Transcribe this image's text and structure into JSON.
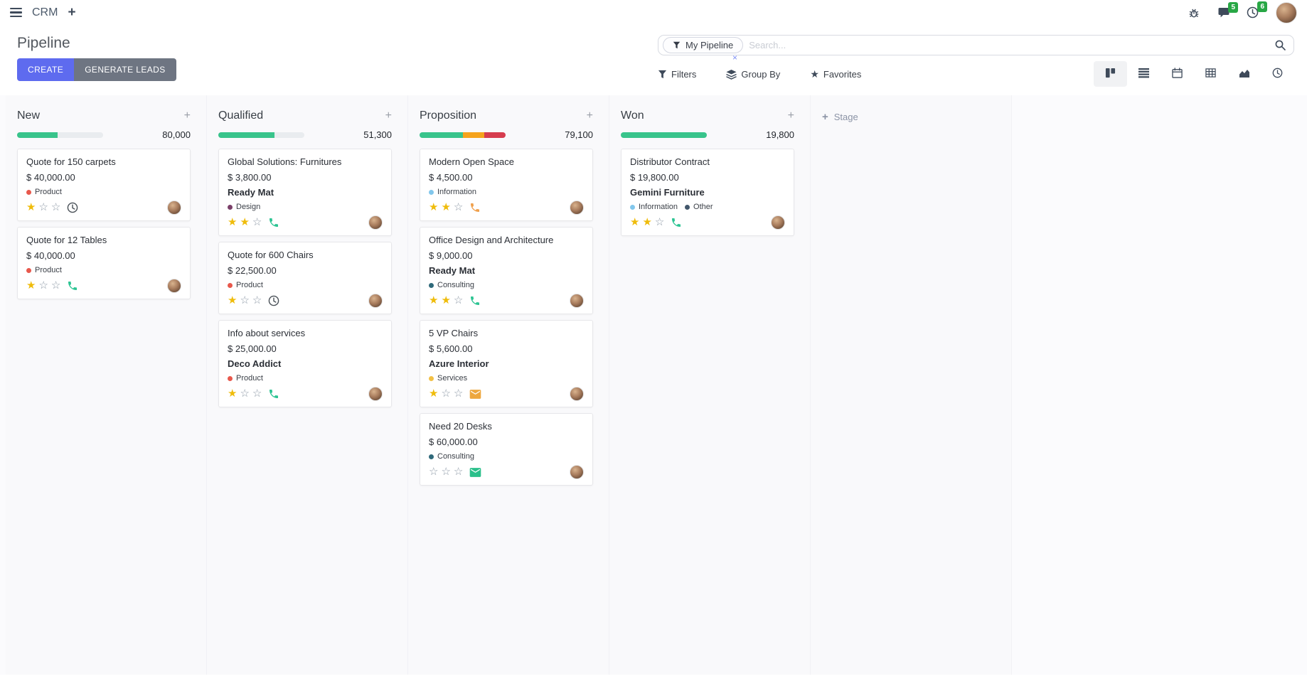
{
  "navbar": {
    "app_name": "CRM",
    "messages_badge": "5",
    "activities_badge": "6",
    "icons": [
      "apps-menu-icon",
      "plus-icon",
      "bug-icon",
      "messages-icon",
      "activities-icon",
      "user-avatar"
    ]
  },
  "control_panel": {
    "title": "Pipeline",
    "buttons": {
      "create": "CREATE",
      "generate_leads": "GENERATE LEADS"
    },
    "search": {
      "facet_label": "My Pipeline",
      "facet_remove": "×",
      "placeholder": "Search..."
    },
    "toolbar": {
      "filters": "Filters",
      "group_by": "Group By",
      "favorites": "Favorites"
    },
    "view_switcher": [
      "kanban",
      "list",
      "calendar",
      "pivot",
      "graph",
      "activity"
    ],
    "active_view": "kanban"
  },
  "board": {
    "add_stage_label": "Stage",
    "track_color": "#e9ecef",
    "columns": [
      {
        "name": "New",
        "total": "80,000",
        "progress": [
          {
            "color": "#38c48b",
            "pct": 47
          }
        ],
        "cards": [
          {
            "title": "Quote for 150 carpets",
            "amount": "$ 40,000.00",
            "tags": [
              {
                "color": "#e8584c",
                "label": "Product"
              }
            ],
            "stars": 1,
            "activity": {
              "icon": "clock",
              "color": "#495057"
            }
          },
          {
            "title": "Quote for 12 Tables",
            "amount": "$ 40,000.00",
            "tags": [
              {
                "color": "#e8584c",
                "label": "Product"
              }
            ],
            "stars": 1,
            "activity": {
              "icon": "phone",
              "color": "#2dc493"
            }
          }
        ]
      },
      {
        "name": "Qualified",
        "total": "51,300",
        "progress": [
          {
            "color": "#38c48b",
            "pct": 65
          }
        ],
        "cards": [
          {
            "title": "Global Solutions: Furnitures",
            "amount": "$ 3,800.00",
            "partner": "Ready Mat",
            "tags": [
              {
                "color": "#7a4069",
                "label": "Design"
              }
            ],
            "stars": 2,
            "activity": {
              "icon": "phone",
              "color": "#2dc493"
            }
          },
          {
            "title": "Quote for 600 Chairs",
            "amount": "$ 22,500.00",
            "tags": [
              {
                "color": "#e8584c",
                "label": "Product"
              }
            ],
            "stars": 1,
            "activity": {
              "icon": "clock",
              "color": "#495057"
            }
          },
          {
            "title": "Info about services",
            "amount": "$ 25,000.00",
            "partner": "Deco Addict",
            "tags": [
              {
                "color": "#e8584c",
                "label": "Product"
              }
            ],
            "stars": 1,
            "activity": {
              "icon": "phone",
              "color": "#2dc493"
            }
          }
        ]
      },
      {
        "name": "Proposition",
        "total": "79,100",
        "progress": [
          {
            "color": "#38c48b",
            "pct": 50
          },
          {
            "color": "#f5a31c",
            "pct": 25
          },
          {
            "color": "#d63c4e",
            "pct": 25
          }
        ],
        "cards": [
          {
            "title": "Modern Open Space",
            "amount": "$ 4,500.00",
            "tags": [
              {
                "color": "#82c7ec",
                "label": "Information"
              }
            ],
            "stars": 2,
            "activity": {
              "icon": "phone",
              "color": "#f0a04c"
            }
          },
          {
            "title": "Office Design and Architecture",
            "amount": "$ 9,000.00",
            "partner": "Ready Mat",
            "tags": [
              {
                "color": "#2f697a",
                "label": "Consulting"
              }
            ],
            "stars": 2,
            "activity": {
              "icon": "phone",
              "color": "#2dc493"
            }
          },
          {
            "title": "5 VP Chairs",
            "amount": "$ 5,600.00",
            "partner": "Azure Interior",
            "tags": [
              {
                "color": "#f2c045",
                "label": "Services"
              }
            ],
            "stars": 1,
            "activity": {
              "icon": "mail",
              "color": "#eda73e"
            }
          },
          {
            "title": "Need 20 Desks",
            "amount": "$ 60,000.00",
            "tags": [
              {
                "color": "#2f697a",
                "label": "Consulting"
              }
            ],
            "stars": 0,
            "activity": {
              "icon": "mail",
              "color": "#2abf8a"
            }
          }
        ]
      },
      {
        "name": "Won",
        "total": "19,800",
        "progress": [
          {
            "color": "#38c48b",
            "pct": 100
          }
        ],
        "cards": [
          {
            "title": "Distributor Contract",
            "amount": "$ 19,800.00",
            "partner": "Gemini Furniture",
            "tags": [
              {
                "color": "#82c7ec",
                "label": "Information"
              },
              {
                "color": "#42576b",
                "label": "Other"
              }
            ],
            "stars": 2,
            "activity": {
              "icon": "phone",
              "color": "#2dc493"
            }
          }
        ]
      }
    ]
  }
}
